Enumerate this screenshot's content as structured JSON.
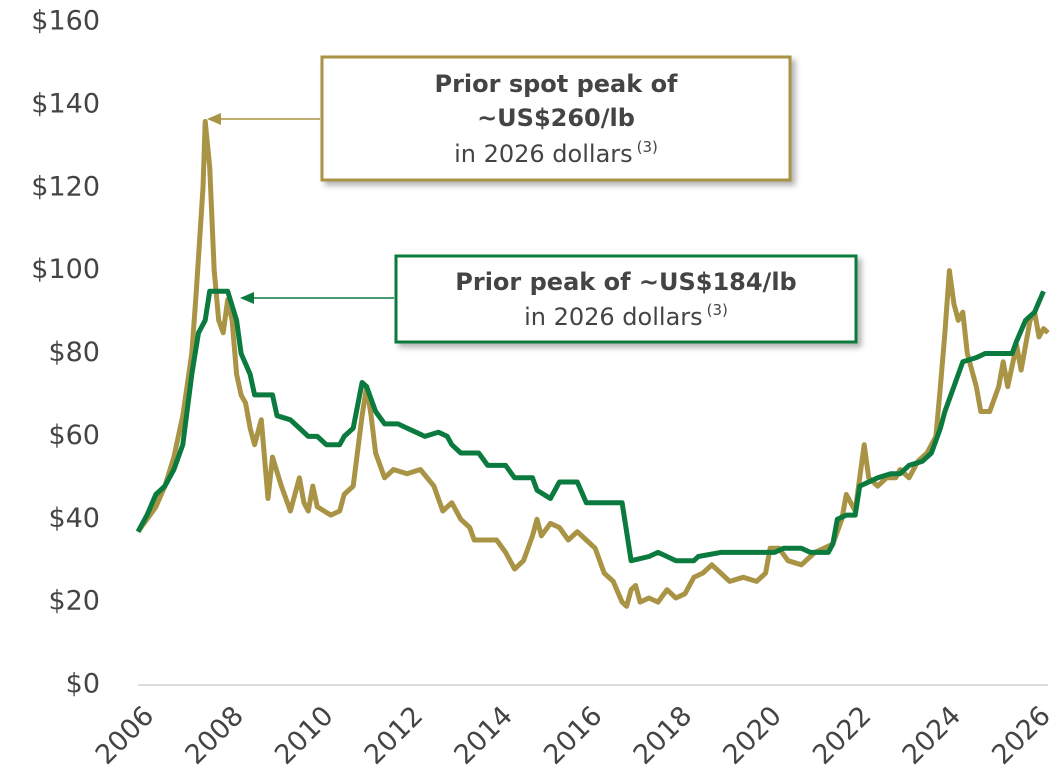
{
  "chart_data": {
    "type": "line",
    "xlim": [
      2006,
      2026.3
    ],
    "xticks": [
      2006,
      2008,
      2010,
      2012,
      2014,
      2016,
      2018,
      2020,
      2022,
      2024,
      2026
    ],
    "ylim": [
      0,
      160
    ],
    "yticks": [
      {
        "value": 0,
        "label": "$0"
      },
      {
        "value": 20,
        "label": "$20"
      },
      {
        "value": 40,
        "label": "$40"
      },
      {
        "value": 60,
        "label": "$60"
      },
      {
        "value": 80,
        "label": "$80"
      },
      {
        "value": 100,
        "label": "$100"
      },
      {
        "value": 120,
        "label": "$120"
      },
      {
        "value": 140,
        "label": "$140"
      },
      {
        "value": 160,
        "label": "$160"
      }
    ],
    "grid": false,
    "series": [
      {
        "color": "#a99344",
        "x": [
          2006.0,
          2006.2,
          2006.4,
          2006.6,
          2006.8,
          2007.0,
          2007.2,
          2007.3,
          2007.45,
          2007.5,
          2007.6,
          2007.7,
          2007.8,
          2007.9,
          2008.0,
          2008.1,
          2008.2,
          2008.3,
          2008.4,
          2008.5,
          2008.6,
          2008.7,
          2008.75,
          2008.9,
          2009.0,
          2009.2,
          2009.4,
          2009.6,
          2009.7,
          2009.8,
          2009.9,
          2010.0,
          2010.3,
          2010.5,
          2010.6,
          2010.8,
          2011.0,
          2011.1,
          2011.2,
          2011.3,
          2011.5,
          2011.7,
          2012.0,
          2012.3,
          2012.6,
          2012.8,
          2013.0,
          2013.2,
          2013.4,
          2013.5,
          2013.8,
          2014.0,
          2014.2,
          2014.4,
          2014.6,
          2014.8,
          2014.9,
          2015.0,
          2015.2,
          2015.4,
          2015.6,
          2015.8,
          2016.0,
          2016.2,
          2016.4,
          2016.6,
          2016.8,
          2016.9,
          2017.0,
          2017.1,
          2017.2,
          2017.4,
          2017.6,
          2017.8,
          2018.0,
          2018.2,
          2018.4,
          2018.6,
          2018.8,
          2019.0,
          2019.2,
          2019.5,
          2019.8,
          2020.0,
          2020.1,
          2020.3,
          2020.5,
          2020.8,
          2021.0,
          2021.1,
          2021.3,
          2021.5,
          2021.7,
          2021.8,
          2022.0,
          2022.1,
          2022.2,
          2022.3,
          2022.5,
          2022.7,
          2022.9,
          2023.0,
          2023.2,
          2023.4,
          2023.6,
          2023.8,
          2023.9,
          2024.0,
          2024.1,
          2024.2,
          2024.3,
          2024.4,
          2024.5,
          2024.7,
          2024.8,
          2025.0,
          2025.2,
          2025.3,
          2025.4,
          2025.6,
          2025.7,
          2025.9,
          2026.0,
          2026.1,
          2026.2,
          2026.3
        ],
        "values": [
          37,
          40,
          43,
          48,
          55,
          65,
          80,
          95,
          120,
          136,
          125,
          100,
          88,
          85,
          93,
          88,
          75,
          70,
          68,
          62,
          58,
          62,
          64,
          45,
          55,
          48,
          42,
          50,
          44,
          42,
          48,
          43,
          41,
          42,
          46,
          48,
          65,
          72,
          65,
          56,
          50,
          52,
          51,
          52,
          48,
          42,
          44,
          40,
          38,
          35,
          35,
          35,
          32,
          28,
          30,
          36,
          40,
          36,
          39,
          38,
          35,
          37,
          35,
          33,
          27,
          25,
          20,
          19,
          23,
          24,
          20,
          21,
          20,
          23,
          21,
          22,
          26,
          27,
          29,
          27,
          25,
          26,
          25,
          27,
          33,
          33,
          30,
          29,
          31,
          32,
          33,
          34,
          40,
          46,
          42,
          50,
          58,
          50,
          48,
          50,
          50,
          52,
          50,
          54,
          56,
          60,
          72,
          85,
          100,
          92,
          88,
          90,
          80,
          72,
          66,
          66,
          72,
          78,
          72,
          82,
          76,
          88,
          90,
          84,
          86,
          85
        ]
      },
      {
        "color": "#0b7a3e",
        "x": [
          2006.0,
          2006.2,
          2006.4,
          2006.6,
          2006.8,
          2007.0,
          2007.2,
          2007.35,
          2007.5,
          2007.6,
          2008.0,
          2008.2,
          2008.3,
          2008.5,
          2008.6,
          2009.0,
          2009.1,
          2009.4,
          2009.6,
          2009.8,
          2010.0,
          2010.2,
          2010.5,
          2010.6,
          2010.8,
          2011.0,
          2011.1,
          2011.3,
          2011.5,
          2011.8,
          2012.0,
          2012.2,
          2012.4,
          2012.7,
          2012.9,
          2013.0,
          2013.2,
          2013.6,
          2013.8,
          2014.2,
          2014.4,
          2014.8,
          2014.9,
          2015.2,
          2015.4,
          2015.8,
          2016.0,
          2016.8,
          2017.0,
          2017.4,
          2017.6,
          2017.8,
          2018.0,
          2018.4,
          2018.5,
          2019.0,
          2019.5,
          2020.0,
          2020.2,
          2020.4,
          2020.8,
          2021.0,
          2021.4,
          2021.5,
          2021.6,
          2021.8,
          2022.0,
          2022.1,
          2022.5,
          2022.8,
          2023.0,
          2023.2,
          2023.5,
          2023.7,
          2023.9,
          2024.0,
          2024.2,
          2024.4,
          2024.7,
          2024.9,
          2025.5,
          2025.6,
          2025.8,
          2026.0,
          2026.2
        ],
        "values": [
          37,
          41,
          46,
          48,
          52,
          58,
          75,
          85,
          88,
          95,
          95,
          88,
          80,
          75,
          70,
          70,
          65,
          64,
          62,
          60,
          60,
          58,
          58,
          60,
          62,
          73,
          72,
          66,
          63,
          63,
          62,
          61,
          60,
          61,
          60,
          58,
          56,
          56,
          53,
          53,
          50,
          50,
          47,
          45,
          49,
          49,
          44,
          44,
          30,
          31,
          32,
          31,
          30,
          30,
          31,
          32,
          32,
          32,
          32,
          33,
          33,
          32,
          32,
          34,
          40,
          41,
          41,
          48,
          50,
          51,
          51,
          53,
          54,
          56,
          62,
          66,
          72,
          78,
          79,
          80,
          80,
          83,
          88,
          90,
          95
        ]
      }
    ],
    "annotations": [
      {
        "bold_lines": [
          "Prior spot peak of",
          "~US$260/lb"
        ],
        "line": "in 2026 dollars",
        "superscript": "(3)"
      },
      {
        "bold_lines": [
          "Prior peak of ~US$184/lb"
        ],
        "line": "in 2026 dollars",
        "superscript": "(3)"
      }
    ]
  }
}
